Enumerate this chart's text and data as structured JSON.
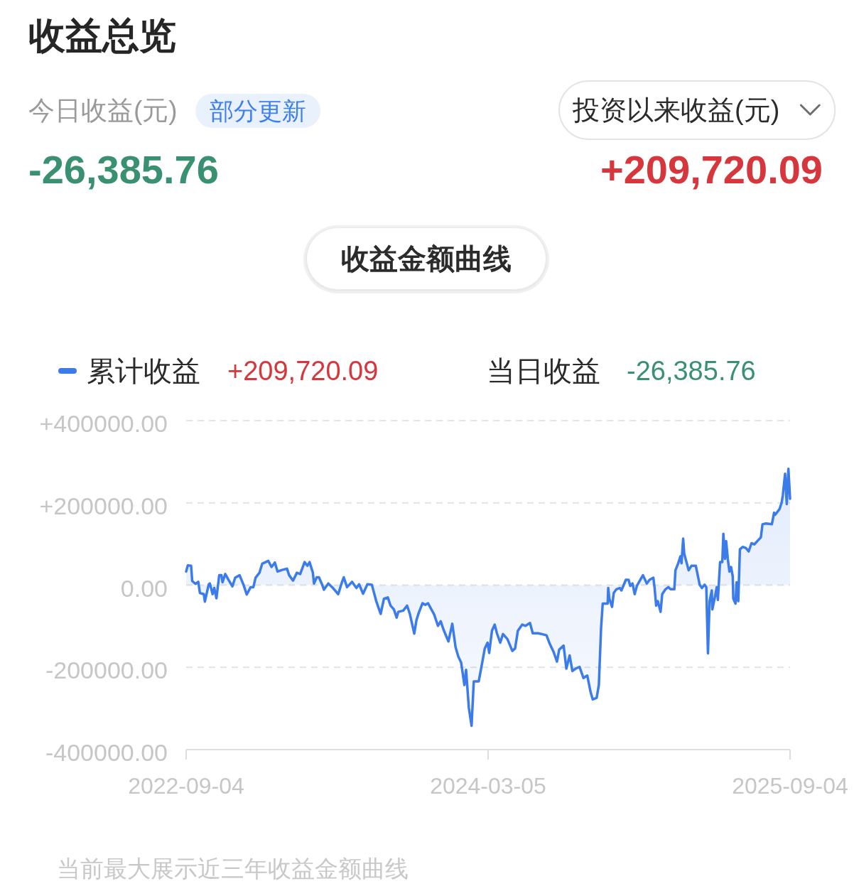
{
  "chart_data": {
    "type": "area",
    "title": "收益总览",
    "subtitle": "收益金额曲线",
    "x": [
      "2022-09-04",
      "2022-09-07",
      "2022-09-13",
      "2022-09-15",
      "2022-09-21",
      "2022-09-26",
      "2022-09-29",
      "2022-10-06",
      "2022-10-08",
      "2022-10-15",
      "2022-10-17",
      "2022-10-22",
      "2022-10-25",
      "2022-10-29",
      "2022-11-03",
      "2022-11-07",
      "2022-11-09",
      "2022-11-14",
      "2022-11-19",
      "2022-11-27",
      "2022-12-02",
      "2022-12-10",
      "2022-12-17",
      "2022-12-23",
      "2022-12-30",
      "2023-01-04",
      "2023-01-08",
      "2023-01-15",
      "2023-01-20",
      "2023-01-31",
      "2023-02-06",
      "2023-02-12",
      "2023-02-17",
      "2023-02-25",
      "2023-03-06",
      "2023-03-10",
      "2023-03-17",
      "2023-03-24",
      "2023-03-30",
      "2023-04-07",
      "2023-04-12",
      "2023-04-16",
      "2023-04-22",
      "2023-04-24",
      "2023-04-29",
      "2023-05-03",
      "2023-05-08",
      "2023-05-12",
      "2023-05-20",
      "2023-05-27",
      "2023-06-07",
      "2023-06-13",
      "2023-06-17",
      "2023-06-23",
      "2023-07-02",
      "2023-07-10",
      "2023-07-15",
      "2023-07-22",
      "2023-07-30",
      "2023-08-07",
      "2023-08-15",
      "2023-08-23",
      "2023-08-29",
      "2023-09-05",
      "2023-09-10",
      "2023-09-16",
      "2023-09-21",
      "2023-09-24",
      "2023-10-03",
      "2023-10-10",
      "2023-10-15",
      "2023-10-23",
      "2023-10-27",
      "2023-10-31",
      "2023-11-07",
      "2023-11-12",
      "2023-11-17",
      "2023-11-23",
      "2023-11-28",
      "2023-12-05",
      "2023-12-10",
      "2023-12-15",
      "2023-12-24",
      "2023-12-31",
      "2024-01-06",
      "2024-01-11",
      "2024-01-16",
      "2024-01-22",
      "2024-01-25",
      "2024-01-30",
      "2024-02-04",
      "2024-02-08",
      "2024-02-17",
      "2024-02-23",
      "2024-02-28",
      "2024-03-04",
      "2024-03-07",
      "2024-03-12",
      "2024-03-17",
      "2024-03-21",
      "2024-03-27",
      "2024-04-01",
      "2024-04-09",
      "2024-04-18",
      "2024-04-23",
      "2024-04-28",
      "2024-05-06",
      "2024-05-12",
      "2024-05-20",
      "2024-05-25",
      "2024-06-04",
      "2024-06-19",
      "2024-06-25",
      "2024-07-02",
      "2024-07-08",
      "2024-07-12",
      "2024-07-20",
      "2024-07-25",
      "2024-07-31",
      "2024-08-05",
      "2024-08-11",
      "2024-08-18",
      "2024-08-25",
      "2024-09-01",
      "2024-09-07",
      "2024-09-11",
      "2024-09-18",
      "2024-09-22",
      "2024-09-26",
      "2024-09-29",
      "2024-10-08",
      "2024-10-09",
      "2024-10-11",
      "2024-10-16",
      "2024-10-19",
      "2024-10-24",
      "2024-10-30",
      "2024-11-02",
      "2024-11-10",
      "2024-11-15",
      "2024-11-18",
      "2024-11-22",
      "2024-11-26",
      "2024-11-30",
      "2024-12-05",
      "2024-12-11",
      "2024-12-18",
      "2024-12-23",
      "2024-12-30",
      "2025-01-01",
      "2025-01-04",
      "2025-01-07",
      "2025-01-12",
      "2025-01-15",
      "2025-01-21",
      "2025-01-26",
      "2025-01-30",
      "2025-02-06",
      "2025-02-08",
      "2025-02-13",
      "2025-02-17",
      "2025-02-19",
      "2025-02-22",
      "2025-02-24",
      "2025-03-04",
      "2025-03-09",
      "2025-03-17",
      "2025-03-24",
      "2025-03-28",
      "2025-04-02",
      "2025-04-05",
      "2025-04-08",
      "2025-04-11",
      "2025-04-15",
      "2025-04-16",
      "2025-04-20",
      "2025-04-24",
      "2025-04-26",
      "2025-04-30",
      "2025-05-04",
      "2025-05-06",
      "2025-05-09",
      "2025-05-11",
      "2025-05-14",
      "2025-05-17",
      "2025-05-20",
      "2025-05-23",
      "2025-05-24",
      "2025-05-28",
      "2025-05-30",
      "2025-06-02",
      "2025-06-05",
      "2025-06-10",
      "2025-06-16",
      "2025-06-21",
      "2025-06-26",
      "2025-07-01",
      "2025-07-08",
      "2025-07-13",
      "2025-07-16",
      "2025-07-22",
      "2025-08-02",
      "2025-08-06",
      "2025-08-08",
      "2025-08-16",
      "2025-08-20",
      "2025-08-22",
      "2025-08-26",
      "2025-08-29",
      "2025-09-01",
      "2025-09-04"
    ],
    "series": [
      {
        "name": "累计收益",
        "color": "#3b7bea",
        "values": [
          33000,
          48000,
          47000,
          10000,
          3000,
          8000,
          -19000,
          -22000,
          -40000,
          2000,
          4000,
          -22000,
          -7000,
          -32000,
          24000,
          24000,
          7000,
          27000,
          15000,
          -3000,
          18000,
          24000,
          1000,
          -23000,
          -5000,
          -5000,
          18000,
          30000,
          52000,
          59000,
          44000,
          55000,
          33000,
          37000,
          40000,
          24000,
          11000,
          30000,
          27000,
          56000,
          47000,
          56000,
          30000,
          4000,
          19000,
          19000,
          4000,
          -11000,
          4000,
          -5000,
          -22000,
          4000,
          19000,
          -5000,
          8000,
          -7000,
          2000,
          -21000,
          2000,
          1000,
          -39000,
          -70000,
          -33000,
          -30000,
          -50000,
          -59000,
          -79000,
          -65000,
          -62000,
          -50000,
          -70000,
          -118000,
          -85000,
          -68000,
          -44000,
          -48000,
          -44000,
          -59000,
          -71000,
          -99000,
          -88000,
          -108000,
          -137000,
          -94000,
          -151000,
          -174000,
          -188000,
          -243000,
          -206000,
          -298000,
          -342000,
          -234000,
          -234000,
          -191000,
          -154000,
          -140000,
          -165000,
          -111000,
          -96000,
          -117000,
          -140000,
          -119000,
          -131000,
          -160000,
          -154000,
          -111000,
          -96000,
          -99000,
          -92000,
          -117000,
          -117000,
          -122000,
          -143000,
          -163000,
          -186000,
          -157000,
          -147000,
          -203000,
          -171000,
          -209000,
          -203000,
          -199000,
          -226000,
          -220000,
          -260000,
          -278000,
          -274000,
          -243000,
          -105000,
          -45000,
          -45000,
          -7000,
          -33000,
          -53000,
          -19000,
          -10000,
          -7000,
          -13000,
          13000,
          13000,
          -2000,
          4000,
          -22000,
          -2000,
          10000,
          24000,
          4000,
          13000,
          18000,
          -5000,
          -50000,
          -39000,
          -65000,
          -22000,
          -10000,
          -5000,
          -10000,
          -10000,
          36000,
          53000,
          70000,
          53000,
          113000,
          76000,
          36000,
          47000,
          47000,
          1000,
          -7000,
          1000,
          -5000,
          -166000,
          -39000,
          -13000,
          -59000,
          -33000,
          -5000,
          -36000,
          56000,
          56000,
          125000,
          64000,
          107000,
          64000,
          33000,
          44000,
          21000,
          -33000,
          -45000,
          7000,
          -39000,
          87000,
          93000,
          90000,
          82000,
          102000,
          99000,
          109000,
          116000,
          148000,
          150000,
          148000,
          176000,
          171000,
          185000,
          202000,
          220000,
          271000,
          197000,
          283000,
          210000
        ]
      }
    ],
    "xlim": [
      "2022-09-04",
      "2025-09-04"
    ],
    "xticks": [
      "2022-09-04",
      "2024-03-05",
      "2025-09-04"
    ],
    "ylim": [
      -400000,
      400000
    ],
    "yticks": [
      {
        "value": -400000,
        "label": "-400000.00"
      },
      {
        "value": -200000,
        "label": "-200000.00"
      },
      {
        "value": 0,
        "label": "0.00"
      },
      {
        "value": 200000,
        "label": "+200000.00"
      },
      {
        "value": 400000,
        "label": "+400000.00"
      }
    ],
    "grid": "y",
    "legend": "top",
    "annotations": [
      "今日收益(元)",
      "部分更新",
      "-26,385.76",
      "投资以来收益(元)",
      "+209,720.09",
      "+209,720.09",
      "当日收益",
      "-26,385.76",
      "当前最大展示近三年收益金额曲线"
    ]
  }
}
